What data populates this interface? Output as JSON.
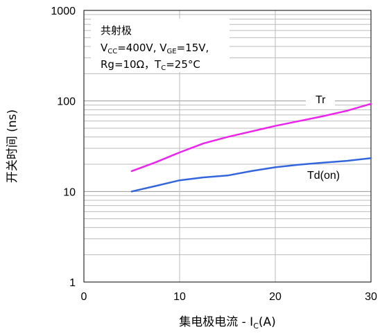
{
  "chart_data": {
    "type": "line",
    "xlabel_main": "集电极电流 - I",
    "xlabel_sub": "C",
    "xlabel_unit": "(A)",
    "ylabel": "开关时间 (ns)",
    "xlim": [
      0,
      30
    ],
    "ylim": [
      1,
      1000
    ],
    "yscale": "log",
    "grid": true,
    "x_ticks": [
      "0",
      "10",
      "20",
      "30"
    ],
    "y_ticks": [
      "1",
      "10",
      "100",
      "1000"
    ],
    "conditions": {
      "line1": "共射极",
      "line2": {
        "v1_main": "V",
        "v1_sub": "CC",
        "v1_rest": "=400V, ",
        "v2_main": "V",
        "v2_sub": "GE",
        "v2_rest": "=15V,"
      },
      "line3": {
        "main": "Rg=10Ω，T",
        "sub": "C",
        "rest": "=25°C"
      }
    },
    "series": [
      {
        "name": "Tr",
        "color": "#ee22ee",
        "x": [
          5,
          7.5,
          10,
          12.5,
          15,
          17.5,
          20,
          22.5,
          25,
          27.5,
          30
        ],
        "y": [
          16.8,
          21,
          27,
          34,
          40,
          46,
          53,
          60,
          68,
          78,
          93
        ]
      },
      {
        "name": "Td(on)",
        "color": "#3366dd",
        "x": [
          5,
          7.5,
          10,
          12.5,
          15,
          17.5,
          20,
          22.5,
          25,
          27.5,
          30
        ],
        "y": [
          10,
          11.5,
          13.3,
          14.3,
          15,
          16.8,
          18.5,
          19.8,
          20.8,
          21.8,
          23.3
        ]
      }
    ]
  }
}
